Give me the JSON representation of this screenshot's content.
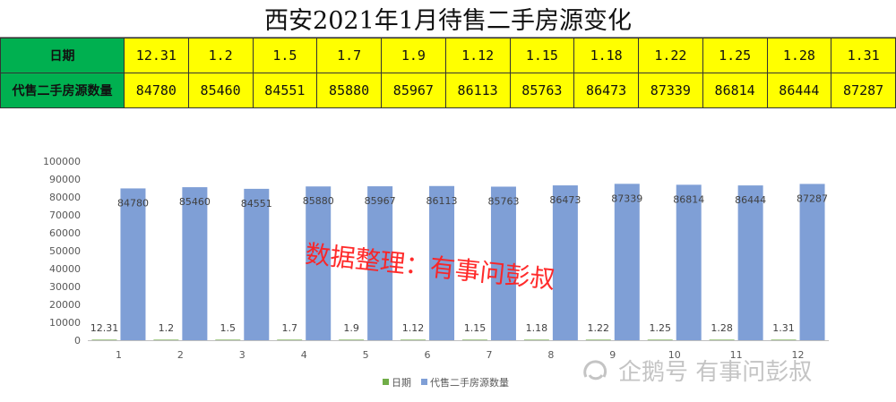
{
  "title": "西安2021年1月待售二手房源变化",
  "table": {
    "row1_label": "日期",
    "row2_label": "代售二手房源数量",
    "dates": [
      "12.31",
      "1.2",
      "1.5",
      "1.7",
      "1.9",
      "1.12",
      "1.15",
      "1.18",
      "1.22",
      "1.25",
      "1.28",
      "1.31"
    ],
    "counts": [
      "84780",
      "85460",
      "84551",
      "85880",
      "85967",
      "86113",
      "85763",
      "86473",
      "87339",
      "86814",
      "86444",
      "87287"
    ]
  },
  "chart_data": {
    "type": "bar",
    "categories": [
      "1",
      "2",
      "3",
      "4",
      "5",
      "6",
      "7",
      "8",
      "9",
      "10",
      "11",
      "12"
    ],
    "series": [
      {
        "name": "日期",
        "values": [
          12.31,
          1.2,
          1.5,
          1.7,
          1.9,
          1.12,
          1.15,
          1.18,
          1.22,
          1.25,
          1.28,
          1.31
        ],
        "labels": [
          "12.31",
          "1.2",
          "1.5",
          "1.7",
          "1.9",
          "1.12",
          "1.15",
          "1.18",
          "1.22",
          "1.25",
          "1.28",
          "1.31"
        ],
        "color": "#70ad47"
      },
      {
        "name": "代售二手房源数量",
        "values": [
          84780,
          85460,
          84551,
          85880,
          85967,
          86113,
          85763,
          86473,
          87339,
          86814,
          86444,
          87287
        ],
        "color": "#7f9fd6"
      }
    ],
    "yticks": [
      "0",
      "10000",
      "20000",
      "30000",
      "40000",
      "50000",
      "60000",
      "70000",
      "80000",
      "90000",
      "100000"
    ],
    "ylim": [
      0,
      100000
    ],
    "title": "",
    "xlabel": "",
    "ylabel": "",
    "grid": false,
    "legend": "bottom"
  },
  "watermark": "数据整理：有事问彭叔",
  "brand": {
    "icon": "penguin-logo-icon",
    "text": "企鹅号 有事问彭叔"
  }
}
